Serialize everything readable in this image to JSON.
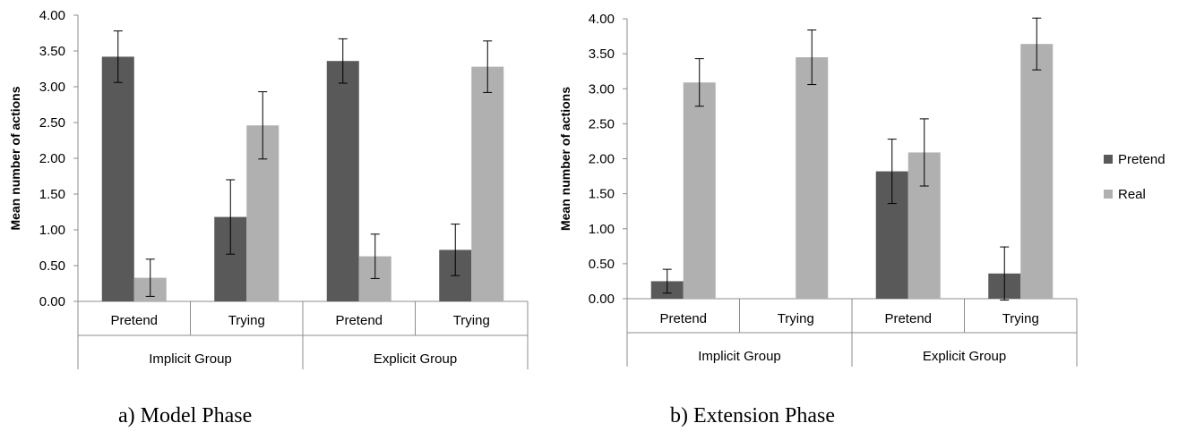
{
  "legend": {
    "position": "right",
    "entries": [
      {
        "name": "Pretend",
        "color": "#595959"
      },
      {
        "name": "Real",
        "color": "#b0b0b0"
      }
    ]
  },
  "captions": {
    "a": "a)   Model Phase",
    "b": "b) Extension Phase"
  },
  "chart_data": [
    {
      "type": "bar",
      "ylabel": "Mean number of actions",
      "ylim": [
        0,
        4
      ],
      "yticks": [
        "0.00",
        "0.50",
        "1.00",
        "1.50",
        "2.00",
        "2.50",
        "3.00",
        "3.50",
        "4.00"
      ],
      "groups": [
        "Implicit Group",
        "Explicit Group"
      ],
      "categories": [
        "Pretend",
        "Trying",
        "Pretend",
        "Trying"
      ],
      "series": [
        {
          "name": "Pretend",
          "values": [
            3.42,
            1.18,
            3.36,
            0.72
          ],
          "errors": [
            0.36,
            0.52,
            0.31,
            0.36
          ],
          "color": "#595959"
        },
        {
          "name": "Real",
          "values": [
            0.33,
            2.46,
            0.63,
            3.28
          ],
          "errors": [
            0.26,
            0.47,
            0.31,
            0.36
          ],
          "color": "#b0b0b0"
        }
      ],
      "grid": false,
      "caption": "a)   Model Phase"
    },
    {
      "type": "bar",
      "ylabel": "Mean number of actions",
      "ylim": [
        0,
        4
      ],
      "yticks": [
        "0.00",
        "0.50",
        "1.00",
        "1.50",
        "2.00",
        "2.50",
        "3.00",
        "3.50",
        "4.00"
      ],
      "groups": [
        "Implicit Group",
        "Explicit Group"
      ],
      "categories": [
        "Pretend",
        "Trying",
        "Pretend",
        "Trying"
      ],
      "series": [
        {
          "name": "Pretend",
          "values": [
            0.25,
            0,
            1.82,
            0.36
          ],
          "errors": [
            0.17,
            0,
            0.46,
            0.38
          ],
          "color": "#595959"
        },
        {
          "name": "Real",
          "values": [
            3.09,
            3.45,
            2.09,
            3.64
          ],
          "errors": [
            0.34,
            0.39,
            0.48,
            0.37
          ],
          "color": "#b0b0b0"
        }
      ],
      "grid": false,
      "caption": "b) Extension Phase"
    }
  ]
}
